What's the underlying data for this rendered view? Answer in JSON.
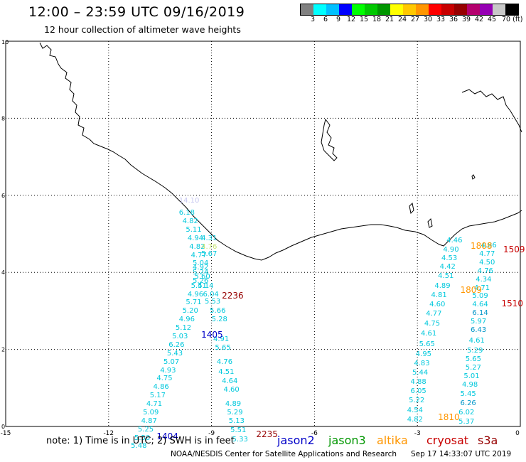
{
  "header": {
    "title": "12:00 – 23:59 UTC 09/16/2019",
    "subtitle": "12 hour collection of altimeter wave heights"
  },
  "colorbar": {
    "colors": [
      "#808080",
      "#00ffff",
      "#00c0ff",
      "#0000ff",
      "#00ff00",
      "#00c800",
      "#009600",
      "#ffff00",
      "#ffc800",
      "#ff9600",
      "#ff0000",
      "#c80000",
      "#960000",
      "#b4006e",
      "#9600b4",
      "#c8c8c8",
      "#000000"
    ],
    "labels": [
      "3",
      "6",
      "9",
      "12",
      "15",
      "18",
      "21",
      "24",
      "27",
      "30",
      "33",
      "36",
      "39",
      "42",
      "45",
      "70 (ft)"
    ]
  },
  "axes": {
    "x_ticks": [
      "-15",
      "-12",
      "-9",
      "-6",
      "-3",
      "0"
    ],
    "y_ticks": [
      "0",
      "2",
      "4",
      "6",
      "8",
      "10"
    ]
  },
  "legend": {
    "note": "note: 1) Time is in UTC; 2) SWH is in feet",
    "jason2": "jason2",
    "jason3": "jason3",
    "altika": "altika",
    "cryosat": "cryosat",
    "s3a": "s3a",
    "colors": {
      "jason2": "#0000c8",
      "jason3": "#009600",
      "altika": "#ff9600",
      "cryosat": "#c80000",
      "s3a": "#960000"
    }
  },
  "footer": {
    "credit": "NOAA/NESDIS Center for Satellite Applications and Research",
    "timestamp": "Sep 17 14:33:07 UTC 2019"
  },
  "tracks": {
    "labels": [
      {
        "text": "2236",
        "lon": -8.7,
        "lat": 3.5,
        "color": "#960000"
      },
      {
        "text": "1405",
        "lon": -9.3,
        "lat": 2.5,
        "color": "#0000c8"
      },
      {
        "text": "1404",
        "lon": -10.6,
        "lat": -0.15,
        "color": "#0000c8"
      },
      {
        "text": "2235",
        "lon": -7.7,
        "lat": -0.1,
        "color": "#960000"
      },
      {
        "text": "1808",
        "lon": -1.45,
        "lat": 4.8,
        "color": "#ff9600"
      },
      {
        "text": "1509",
        "lon": -0.4,
        "lat": 4.7,
        "color": "#c80000"
      },
      {
        "text": "1809",
        "lon": -1.75,
        "lat": 3.65,
        "color": "#ff9600"
      },
      {
        "text": "1510",
        "lon": -0.55,
        "lat": 3.3,
        "color": "#c80000"
      },
      {
        "text": "1810",
        "lon": -2.4,
        "lat": 0.35,
        "color": "#ff9600"
      }
    ],
    "values": [
      {
        "text": "14.10",
        "lon": -9.95,
        "lat": 5.95,
        "color": "#c8c8f0"
      },
      {
        "text": "6.18",
        "lon": -9.95,
        "lat": 5.62
      },
      {
        "text": "4.82",
        "lon": -9.85,
        "lat": 5.4
      },
      {
        "text": "5.11",
        "lon": -9.75,
        "lat": 5.18
      },
      {
        "text": "4.94",
        "lon": -9.7,
        "lat": 4.96
      },
      {
        "text": "4.31",
        "lon": -9.3,
        "lat": 4.96
      },
      {
        "text": "4.82",
        "lon": -9.65,
        "lat": 4.74
      },
      {
        "text": "4.76",
        "lon": -9.3,
        "lat": 4.74,
        "color": "#c8e678"
      },
      {
        "text": "4.77",
        "lon": -9.6,
        "lat": 4.52
      },
      {
        "text": "5.67",
        "lon": -9.3,
        "lat": 4.56
      },
      {
        "text": "5.04",
        "lon": -9.55,
        "lat": 4.32
      },
      {
        "text": "4.92",
        "lon": -9.55,
        "lat": 4.2
      },
      {
        "text": "5.24",
        "lon": -9.55,
        "lat": 4.08
      },
      {
        "text": "5.60",
        "lon": -9.5,
        "lat": 3.97
      },
      {
        "text": "5.26",
        "lon": -9.55,
        "lat": 3.85
      },
      {
        "text": "5.41",
        "lon": -9.6,
        "lat": 3.72
      },
      {
        "text": "5.14",
        "lon": -9.4,
        "lat": 3.72
      },
      {
        "text": "4.96",
        "lon": -9.7,
        "lat": 3.5
      },
      {
        "text": "6.04",
        "lon": -9.25,
        "lat": 3.5
      },
      {
        "text": "5.71",
        "lon": -9.75,
        "lat": 3.3
      },
      {
        "text": "5.53",
        "lon": -9.2,
        "lat": 3.33
      },
      {
        "text": "5.20",
        "lon": -9.85,
        "lat": 3.08
      },
      {
        "text": "5.66",
        "lon": -9.05,
        "lat": 3.08
      },
      {
        "text": "4.96",
        "lon": -9.95,
        "lat": 2.86
      },
      {
        "text": "5.28",
        "lon": -9.0,
        "lat": 2.86
      },
      {
        "text": "5.12",
        "lon": -10.05,
        "lat": 2.64
      },
      {
        "text": "5.03",
        "lon": -10.15,
        "lat": 2.42
      },
      {
        "text": "4.91",
        "lon": -8.95,
        "lat": 2.34
      },
      {
        "text": "6.26",
        "lon": -10.25,
        "lat": 2.2
      },
      {
        "text": "5.65",
        "lon": -8.9,
        "lat": 2.12
      },
      {
        "text": "5.43",
        "lon": -10.3,
        "lat": 1.98
      },
      {
        "text": "5.07",
        "lon": -10.4,
        "lat": 1.76
      },
      {
        "text": "4.76",
        "lon": -8.85,
        "lat": 1.76
      },
      {
        "text": "4.93",
        "lon": -10.5,
        "lat": 1.54
      },
      {
        "text": "4.51",
        "lon": -8.8,
        "lat": 1.5
      },
      {
        "text": "4.75",
        "lon": -10.6,
        "lat": 1.32
      },
      {
        "text": "4.64",
        "lon": -8.7,
        "lat": 1.26
      },
      {
        "text": "4.86",
        "lon": -10.7,
        "lat": 1.1
      },
      {
        "text": "4.60",
        "lon": -8.65,
        "lat": 1.04
      },
      {
        "text": "5.17",
        "lon": -10.8,
        "lat": 0.88
      },
      {
        "text": "4.71",
        "lon": -10.9,
        "lat": 0.66
      },
      {
        "text": "4.89",
        "lon": -8.6,
        "lat": 0.66
      },
      {
        "text": "5.09",
        "lon": -11.0,
        "lat": 0.44
      },
      {
        "text": "5.29",
        "lon": -8.55,
        "lat": 0.44
      },
      {
        "text": "4.87",
        "lon": -11.05,
        "lat": 0.22
      },
      {
        "text": "5.13",
        "lon": -8.5,
        "lat": 0.22
      },
      {
        "text": "5.25",
        "lon": -11.15,
        "lat": 0.0
      },
      {
        "text": "5.51",
        "lon": -8.45,
        "lat": -0.02
      },
      {
        "text": "5.50",
        "lon": -11.25,
        "lat": -0.22
      },
      {
        "text": "5.33",
        "lon": -8.4,
        "lat": -0.26
      },
      {
        "text": "5.48",
        "lon": -11.35,
        "lat": -0.43
      },
      {
        "text": "4.46",
        "lon": -2.15,
        "lat": 4.9
      },
      {
        "text": "4.90",
        "lon": -2.25,
        "lat": 4.66
      },
      {
        "text": "4.86",
        "lon": -1.15,
        "lat": 4.78
      },
      {
        "text": "4.53",
        "lon": -2.3,
        "lat": 4.44
      },
      {
        "text": "4.77",
        "lon": -1.2,
        "lat": 4.56
      },
      {
        "text": "4.42",
        "lon": -2.35,
        "lat": 4.22
      },
      {
        "text": "4.50",
        "lon": -1.2,
        "lat": 4.34
      },
      {
        "text": "4.51",
        "lon": -2.4,
        "lat": 3.98
      },
      {
        "text": "4.76",
        "lon": -1.25,
        "lat": 4.12
      },
      {
        "text": "4.34",
        "lon": -1.3,
        "lat": 3.9
      },
      {
        "text": "4.89",
        "lon": -2.5,
        "lat": 3.72
      },
      {
        "text": "4.71",
        "lon": -1.35,
        "lat": 3.68
      },
      {
        "text": "4.81",
        "lon": -2.6,
        "lat": 3.48
      },
      {
        "text": "5.09",
        "lon": -1.4,
        "lat": 3.46
      },
      {
        "text": "4.60",
        "lon": -2.65,
        "lat": 3.24
      },
      {
        "text": "4.64",
        "lon": -1.4,
        "lat": 3.24
      },
      {
        "text": "4.77",
        "lon": -2.75,
        "lat": 3.0
      },
      {
        "text": "6.14",
        "lon": -1.4,
        "lat": 3.02,
        "color": "#0096c8"
      },
      {
        "text": "4.75",
        "lon": -2.8,
        "lat": 2.74
      },
      {
        "text": "5.97",
        "lon": -1.45,
        "lat": 2.8
      },
      {
        "text": "4.61",
        "lon": -2.9,
        "lat": 2.5
      },
      {
        "text": "6.43",
        "lon": -1.45,
        "lat": 2.58,
        "color": "#0096c8"
      },
      {
        "text": "5.65",
        "lon": -2.95,
        "lat": 2.22
      },
      {
        "text": "4.61",
        "lon": -1.5,
        "lat": 2.3
      },
      {
        "text": "4.95",
        "lon": -3.05,
        "lat": 1.96
      },
      {
        "text": "5.29",
        "lon": -1.55,
        "lat": 2.04
      },
      {
        "text": "4.83",
        "lon": -3.1,
        "lat": 1.72
      },
      {
        "text": "5.65",
        "lon": -1.6,
        "lat": 1.82
      },
      {
        "text": "5.44",
        "lon": -3.15,
        "lat": 1.48
      },
      {
        "text": "5.27",
        "lon": -1.6,
        "lat": 1.6
      },
      {
        "text": "4.88",
        "lon": -3.2,
        "lat": 1.24
      },
      {
        "text": "5.01",
        "lon": -1.65,
        "lat": 1.38
      },
      {
        "text": "6.05",
        "lon": -3.2,
        "lat": 1.0
      },
      {
        "text": "4.98",
        "lon": -1.7,
        "lat": 1.16
      },
      {
        "text": "5.22",
        "lon": -3.25,
        "lat": 0.76
      },
      {
        "text": "5.45",
        "lon": -1.75,
        "lat": 0.92
      },
      {
        "text": "4.54",
        "lon": -3.3,
        "lat": 0.5
      },
      {
        "text": "6.26",
        "lon": -1.75,
        "lat": 0.68,
        "color": "#0096c8"
      },
      {
        "text": "4.82",
        "lon": -3.3,
        "lat": 0.26
      },
      {
        "text": "6.02",
        "lon": -1.8,
        "lat": 0.44
      },
      {
        "text": "5.37",
        "lon": -1.8,
        "lat": 0.2
      }
    ]
  }
}
